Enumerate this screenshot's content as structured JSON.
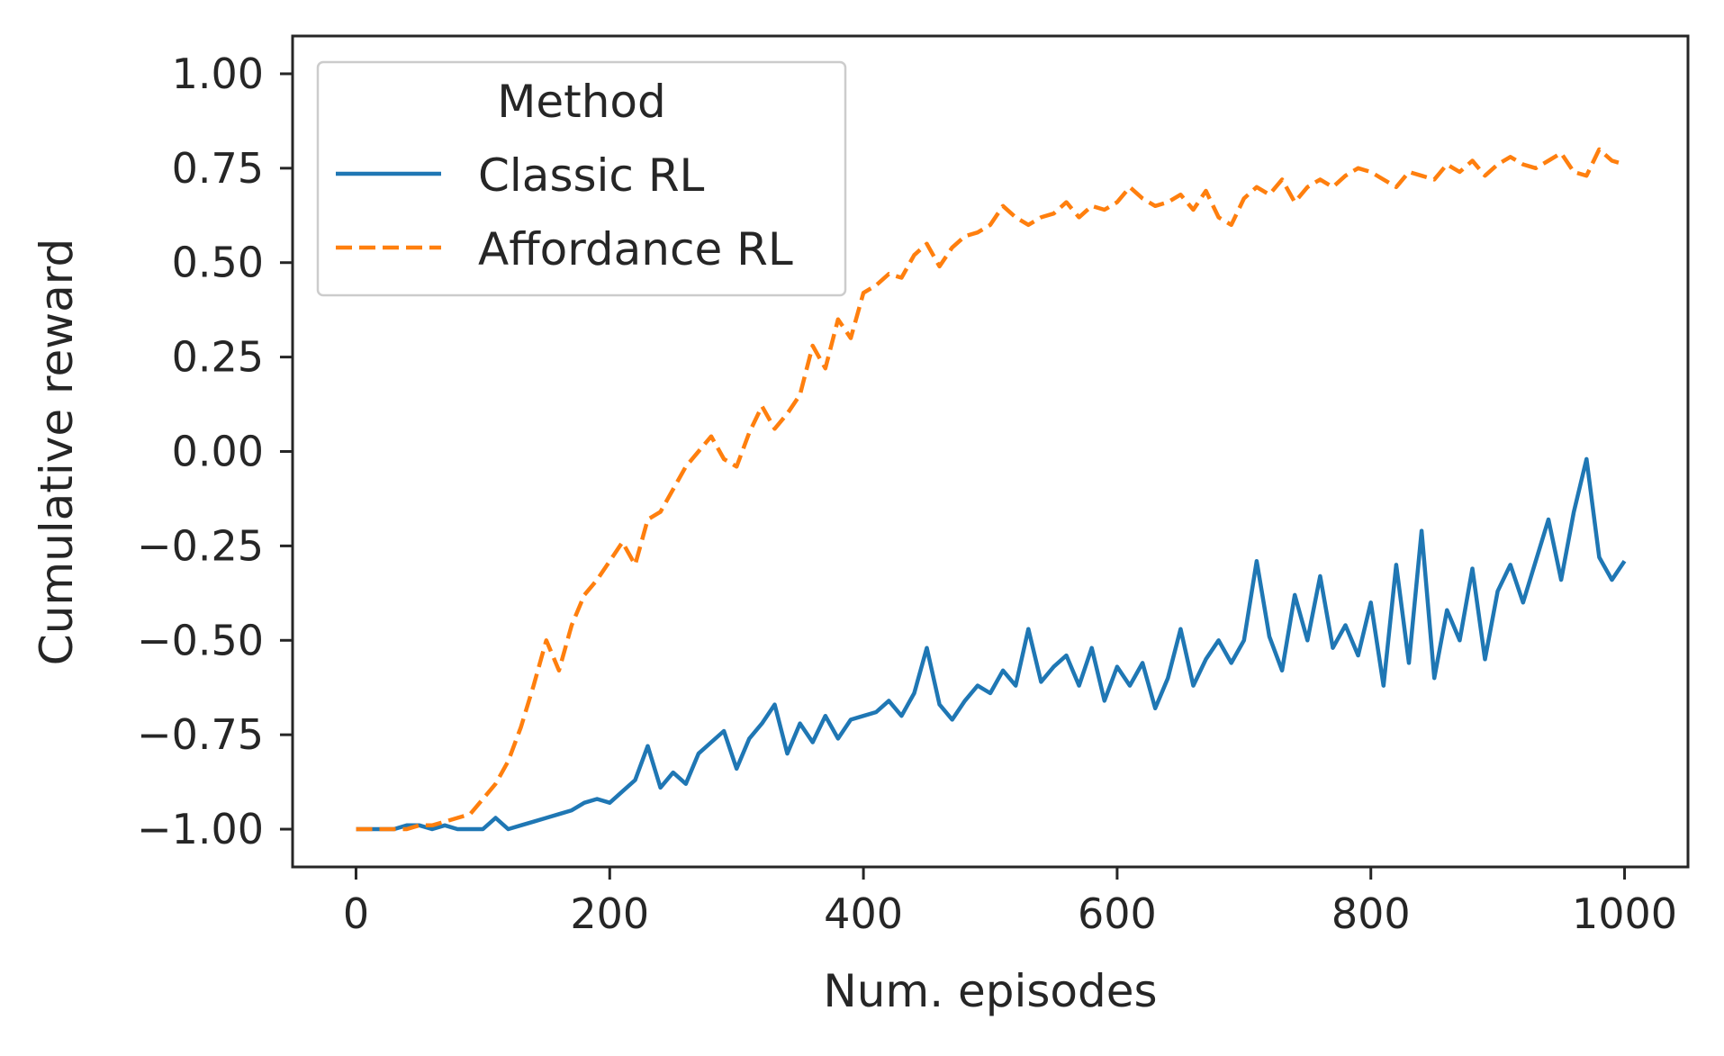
{
  "chart_data": {
    "type": "line",
    "title": "",
    "xlabel": "Num. episodes",
    "ylabel": "Cumulative reward",
    "xlim": [
      -50,
      1050
    ],
    "ylim": [
      -1.1,
      1.1
    ],
    "xticks": [
      0,
      200,
      400,
      600,
      800,
      1000
    ],
    "xtick_labels": [
      "0",
      "200",
      "400",
      "600",
      "800",
      "1000"
    ],
    "yticks": [
      1.0,
      0.75,
      0.5,
      0.25,
      0.0,
      -0.25,
      -0.5,
      -0.75,
      -1.0
    ],
    "ytick_labels": [
      "1.00",
      "0.75",
      "0.50",
      "0.25",
      "0.00",
      "−0.25",
      "−0.50",
      "−0.75",
      "−1.00"
    ],
    "grid": false,
    "legend": {
      "title": "Method",
      "position": "top-left"
    },
    "series": [
      {
        "name": "Classic RL",
        "color": "#1f77b4",
        "style": "solid",
        "x": [
          0,
          10,
          20,
          30,
          40,
          50,
          60,
          70,
          80,
          90,
          100,
          110,
          120,
          130,
          140,
          150,
          160,
          170,
          180,
          190,
          200,
          210,
          220,
          230,
          240,
          250,
          260,
          270,
          280,
          290,
          300,
          310,
          320,
          330,
          340,
          350,
          360,
          370,
          380,
          390,
          400,
          410,
          420,
          430,
          440,
          450,
          460,
          470,
          480,
          490,
          500,
          510,
          520,
          530,
          540,
          550,
          560,
          570,
          580,
          590,
          600,
          610,
          620,
          630,
          640,
          650,
          660,
          670,
          680,
          690,
          700,
          710,
          720,
          730,
          740,
          750,
          760,
          770,
          780,
          790,
          800,
          810,
          820,
          830,
          840,
          850,
          860,
          870,
          880,
          890,
          900,
          910,
          920,
          930,
          940,
          950,
          960,
          970,
          980,
          990,
          1000
        ],
        "values": [
          -1.0,
          -1.0,
          -1.0,
          -1.0,
          -0.99,
          -0.99,
          -1.0,
          -0.99,
          -1.0,
          -1.0,
          -1.0,
          -0.97,
          -1.0,
          -0.99,
          -0.98,
          -0.97,
          -0.96,
          -0.95,
          -0.93,
          -0.92,
          -0.93,
          -0.9,
          -0.87,
          -0.78,
          -0.89,
          -0.85,
          -0.88,
          -0.8,
          -0.77,
          -0.74,
          -0.84,
          -0.76,
          -0.72,
          -0.67,
          -0.8,
          -0.72,
          -0.77,
          -0.7,
          -0.76,
          -0.71,
          -0.7,
          -0.69,
          -0.66,
          -0.7,
          -0.64,
          -0.52,
          -0.67,
          -0.71,
          -0.66,
          -0.62,
          -0.64,
          -0.58,
          -0.62,
          -0.47,
          -0.61,
          -0.57,
          -0.54,
          -0.62,
          -0.52,
          -0.66,
          -0.57,
          -0.62,
          -0.56,
          -0.68,
          -0.6,
          -0.47,
          -0.62,
          -0.55,
          -0.5,
          -0.56,
          -0.5,
          -0.29,
          -0.49,
          -0.58,
          -0.38,
          -0.5,
          -0.33,
          -0.52,
          -0.46,
          -0.54,
          -0.4,
          -0.62,
          -0.3,
          -0.56,
          -0.21,
          -0.6,
          -0.42,
          -0.5,
          -0.31,
          -0.55,
          -0.37,
          -0.3,
          -0.4,
          -0.29,
          -0.18,
          -0.34,
          -0.16,
          -0.02,
          -0.28,
          -0.34,
          -0.29
        ]
      },
      {
        "name": "Affordance RL",
        "color": "#ff7f0e",
        "style": "dashed",
        "x": [
          0,
          10,
          20,
          30,
          40,
          50,
          60,
          70,
          80,
          90,
          100,
          110,
          120,
          130,
          140,
          150,
          160,
          170,
          180,
          190,
          200,
          210,
          220,
          230,
          240,
          250,
          260,
          270,
          280,
          290,
          300,
          310,
          320,
          330,
          340,
          350,
          360,
          370,
          380,
          390,
          400,
          410,
          420,
          430,
          440,
          450,
          460,
          470,
          480,
          490,
          500,
          510,
          520,
          530,
          540,
          550,
          560,
          570,
          580,
          590,
          600,
          610,
          620,
          630,
          640,
          650,
          660,
          670,
          680,
          690,
          700,
          710,
          720,
          730,
          740,
          750,
          760,
          770,
          780,
          790,
          800,
          810,
          820,
          830,
          840,
          850,
          860,
          870,
          880,
          890,
          900,
          910,
          920,
          930,
          940,
          950,
          960,
          970,
          980,
          990,
          1000
        ],
        "values": [
          -1.0,
          -1.0,
          -1.0,
          -1.0,
          -1.0,
          -0.99,
          -0.99,
          -0.98,
          -0.97,
          -0.96,
          -0.92,
          -0.88,
          -0.82,
          -0.73,
          -0.62,
          -0.5,
          -0.58,
          -0.46,
          -0.38,
          -0.34,
          -0.29,
          -0.24,
          -0.3,
          -0.18,
          -0.16,
          -0.1,
          -0.04,
          0.0,
          0.04,
          -0.02,
          -0.04,
          0.05,
          0.12,
          0.06,
          0.1,
          0.15,
          0.28,
          0.22,
          0.35,
          0.3,
          0.42,
          0.44,
          0.47,
          0.46,
          0.52,
          0.55,
          0.49,
          0.54,
          0.57,
          0.58,
          0.6,
          0.65,
          0.62,
          0.6,
          0.62,
          0.63,
          0.66,
          0.62,
          0.65,
          0.64,
          0.66,
          0.7,
          0.67,
          0.65,
          0.66,
          0.68,
          0.64,
          0.69,
          0.62,
          0.6,
          0.67,
          0.7,
          0.68,
          0.72,
          0.66,
          0.7,
          0.72,
          0.7,
          0.73,
          0.75,
          0.74,
          0.72,
          0.7,
          0.74,
          0.73,
          0.72,
          0.76,
          0.74,
          0.77,
          0.73,
          0.76,
          0.78,
          0.76,
          0.75,
          0.77,
          0.79,
          0.74,
          0.73,
          0.8,
          0.77,
          0.76
        ]
      }
    ]
  }
}
